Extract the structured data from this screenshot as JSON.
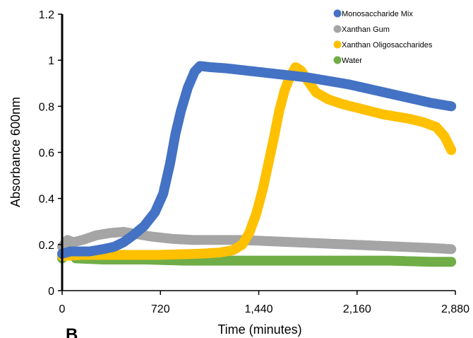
{
  "chart_data": {
    "type": "scatter",
    "xlabel": "Time (minutes)",
    "ylabel": "Absorbance 600nm",
    "xlim": [
      0,
      2880
    ],
    "ylim": [
      0,
      1.2
    ],
    "x_ticks": [
      0,
      720,
      1440,
      2160,
      2880
    ],
    "x_tick_labels": [
      "0",
      "720",
      "1,440",
      "2,160",
      "2,880"
    ],
    "y_ticks": [
      0,
      0.2,
      0.4,
      0.6,
      0.8,
      1,
      1.2
    ],
    "y_tick_labels": [
      "0",
      "0.2",
      "0.4",
      "0.6",
      "0.8",
      "1",
      "1.2"
    ],
    "grid": false,
    "legend_position": "top-right",
    "series": [
      {
        "name": "Monosaccharide Mix",
        "color": "#4472C4",
        "points": [
          [
            0,
            0.16
          ],
          [
            60,
            0.17
          ],
          [
            120,
            0.17
          ],
          [
            200,
            0.17
          ],
          [
            300,
            0.18
          ],
          [
            380,
            0.19
          ],
          [
            450,
            0.21
          ],
          [
            520,
            0.24
          ],
          [
            600,
            0.28
          ],
          [
            680,
            0.34
          ],
          [
            740,
            0.42
          ],
          [
            790,
            0.55
          ],
          [
            830,
            0.68
          ],
          [
            870,
            0.78
          ],
          [
            920,
            0.88
          ],
          [
            970,
            0.95
          ],
          [
            1010,
            0.975
          ],
          [
            1080,
            0.97
          ],
          [
            1200,
            0.965
          ],
          [
            1350,
            0.955
          ],
          [
            1500,
            0.945
          ],
          [
            1650,
            0.935
          ],
          [
            1800,
            0.925
          ],
          [
            1950,
            0.91
          ],
          [
            2100,
            0.895
          ],
          [
            2250,
            0.875
          ],
          [
            2400,
            0.855
          ],
          [
            2550,
            0.835
          ],
          [
            2700,
            0.815
          ],
          [
            2850,
            0.8
          ]
        ]
      },
      {
        "name": "Xanthan Gum",
        "color": "#A5A5A5",
        "points": [
          [
            0,
            0.19
          ],
          [
            40,
            0.22
          ],
          [
            80,
            0.21
          ],
          [
            150,
            0.22
          ],
          [
            250,
            0.24
          ],
          [
            350,
            0.25
          ],
          [
            450,
            0.255
          ],
          [
            550,
            0.245
          ],
          [
            650,
            0.235
          ],
          [
            800,
            0.225
          ],
          [
            950,
            0.22
          ],
          [
            1100,
            0.22
          ],
          [
            1300,
            0.22
          ],
          [
            1500,
            0.215
          ],
          [
            1700,
            0.21
          ],
          [
            1900,
            0.205
          ],
          [
            2100,
            0.2
          ],
          [
            2300,
            0.195
          ],
          [
            2500,
            0.19
          ],
          [
            2700,
            0.185
          ],
          [
            2850,
            0.18
          ]
        ]
      },
      {
        "name": "Xanthan Oligosaccharides",
        "color": "#FFC000",
        "points": [
          [
            0,
            0.15
          ],
          [
            150,
            0.155
          ],
          [
            400,
            0.155
          ],
          [
            700,
            0.155
          ],
          [
            1000,
            0.16
          ],
          [
            1150,
            0.165
          ],
          [
            1250,
            0.175
          ],
          [
            1320,
            0.2
          ],
          [
            1370,
            0.25
          ],
          [
            1420,
            0.33
          ],
          [
            1470,
            0.44
          ],
          [
            1510,
            0.55
          ],
          [
            1550,
            0.66
          ],
          [
            1590,
            0.78
          ],
          [
            1630,
            0.87
          ],
          [
            1670,
            0.93
          ],
          [
            1710,
            0.97
          ],
          [
            1750,
            0.955
          ],
          [
            1800,
            0.91
          ],
          [
            1860,
            0.86
          ],
          [
            1950,
            0.83
          ],
          [
            2050,
            0.81
          ],
          [
            2150,
            0.795
          ],
          [
            2250,
            0.78
          ],
          [
            2350,
            0.765
          ],
          [
            2450,
            0.755
          ],
          [
            2550,
            0.745
          ],
          [
            2650,
            0.73
          ],
          [
            2740,
            0.71
          ],
          [
            2800,
            0.67
          ],
          [
            2850,
            0.61
          ]
        ]
      },
      {
        "name": "Water",
        "color": "#70AD47",
        "points": [
          [
            0,
            0.14
          ],
          [
            50,
            0.185
          ],
          [
            100,
            0.14
          ],
          [
            300,
            0.135
          ],
          [
            600,
            0.135
          ],
          [
            900,
            0.13
          ],
          [
            1200,
            0.13
          ],
          [
            1500,
            0.13
          ],
          [
            1800,
            0.13
          ],
          [
            2100,
            0.13
          ],
          [
            2400,
            0.13
          ],
          [
            2700,
            0.125
          ],
          [
            2850,
            0.125
          ]
        ]
      }
    ]
  },
  "panel_label": "B"
}
